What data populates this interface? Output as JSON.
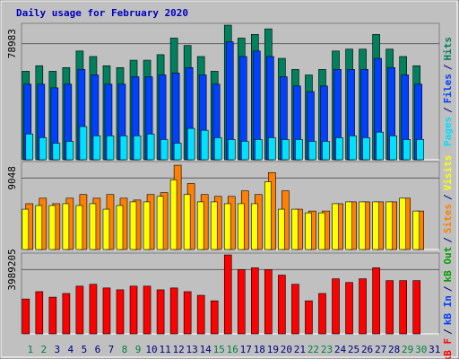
{
  "title": "Daily usage for February 2020",
  "separator": "/",
  "extra_labels": [
    {
      "text": "kB In",
      "color": "#0040ff"
    },
    {
      "text": "kB Out",
      "color": "#00a000"
    }
  ],
  "chart_data": [
    {
      "type": "bar",
      "ylim": [
        0,
        92796
      ],
      "yticks": [
        78983
      ],
      "grid": true,
      "series": [
        {
          "name": "Hits",
          "color": "#00805c",
          "values": [
            60192,
            63954,
            60192,
            62700,
            73986,
            70224,
            63954,
            62700,
            67716,
            67716,
            71478,
            82764,
            77748,
            70224,
            60192,
            91542,
            82764,
            85272,
            89034,
            68970,
            61446,
            57684,
            61446,
            73986,
            75240,
            75240,
            85272,
            75240,
            70224,
            63954,
            null
          ]
        },
        {
          "name": "Files",
          "color": "#0040ff",
          "values": [
            51414,
            51414,
            48906,
            51414,
            61446,
            57684,
            51414,
            51414,
            56430,
            56430,
            57684,
            58938,
            62700,
            57684,
            51414,
            80256,
            70224,
            73986,
            70224,
            56430,
            50160,
            46398,
            50160,
            61446,
            61446,
            61446,
            68970,
            62700,
            57684,
            51414,
            null
          ]
        },
        {
          "name": "Pages",
          "color": "#00e0ff",
          "values": [
            17556,
            15048,
            11286,
            12540,
            22572,
            16302,
            16302,
            16302,
            16302,
            17556,
            13794,
            11286,
            21318,
            20064,
            15048,
            13794,
            12540,
            13794,
            15048,
            13794,
            13794,
            12540,
            12540,
            15048,
            16302,
            15048,
            18810,
            16302,
            13794,
            13794,
            null
          ]
        }
      ]
    },
    {
      "type": "bar",
      "ylim": [
        0,
        11136
      ],
      "yticks": [
        9048
      ],
      "grid": true,
      "series": [
        {
          "name": "Sites",
          "color": "#ff8000",
          "values": [
            5800,
            6496,
            5800,
            6496,
            6960,
            6496,
            6960,
            6496,
            6264,
            6960,
            7192,
            10672,
            8352,
            6960,
            6728,
            6728,
            7424,
            6960,
            9744,
            7424,
            5104,
            4872,
            4872,
            5800,
            6032,
            6032,
            6032,
            6032,
            6496,
            4872,
            null
          ]
        },
        {
          "name": "Visits",
          "color": "#ffff00",
          "values": [
            5104,
            5568,
            5568,
            5800,
            5568,
            5800,
            5104,
            5568,
            6032,
            6032,
            6728,
            8816,
            6960,
            6032,
            6032,
            5800,
            5800,
            5800,
            8584,
            5104,
            5104,
            4640,
            4640,
            5800,
            6032,
            6032,
            6032,
            6032,
            6496,
            4872,
            null
          ]
        }
      ]
    },
    {
      "type": "bar",
      "ylim": [
        0,
        5015032
      ],
      "yticks": [
        3989205
      ],
      "grid": true,
      "categories": [
        "1",
        "2",
        "3",
        "4",
        "5",
        "6",
        "7",
        "8",
        "9",
        "10",
        "11",
        "12",
        "13",
        "14",
        "15",
        "16",
        "17",
        "18",
        "19",
        "20",
        "21",
        "22",
        "23",
        "24",
        "25",
        "26",
        "27",
        "28",
        "29",
        "30",
        "31"
      ],
      "category_colors": [
        "#008040",
        "#008040",
        "#000080",
        "#000080",
        "#000080",
        "#000080",
        "#000080",
        "#008040",
        "#008040",
        "#000080",
        "#000080",
        "#000080",
        "#000080",
        "#000080",
        "#008040",
        "#008040",
        "#000080",
        "#000080",
        "#000080",
        "#000080",
        "#000080",
        "#008040",
        "#008040",
        "#000080",
        "#000080",
        "#000080",
        "#000080",
        "#000080",
        "#008040",
        "#008040",
        "#000080"
      ],
      "series": [
        {
          "name": "kB F",
          "color": "#ff0000",
          "values": [
            2165582,
            2621494,
            2279560,
            2507516,
            2963428,
            3077406,
            2849450,
            2735472,
            2963428,
            2963428,
            2735472,
            2849450,
            2621494,
            2393538,
            2051604,
            4901054,
            3989230,
            4103208,
            3989230,
            3647296,
            3077406,
            2051604,
            2507516,
            3419340,
            3191384,
            3419340,
            4103208,
            3305362,
            3305362,
            3305362,
            null
          ]
        }
      ]
    }
  ]
}
